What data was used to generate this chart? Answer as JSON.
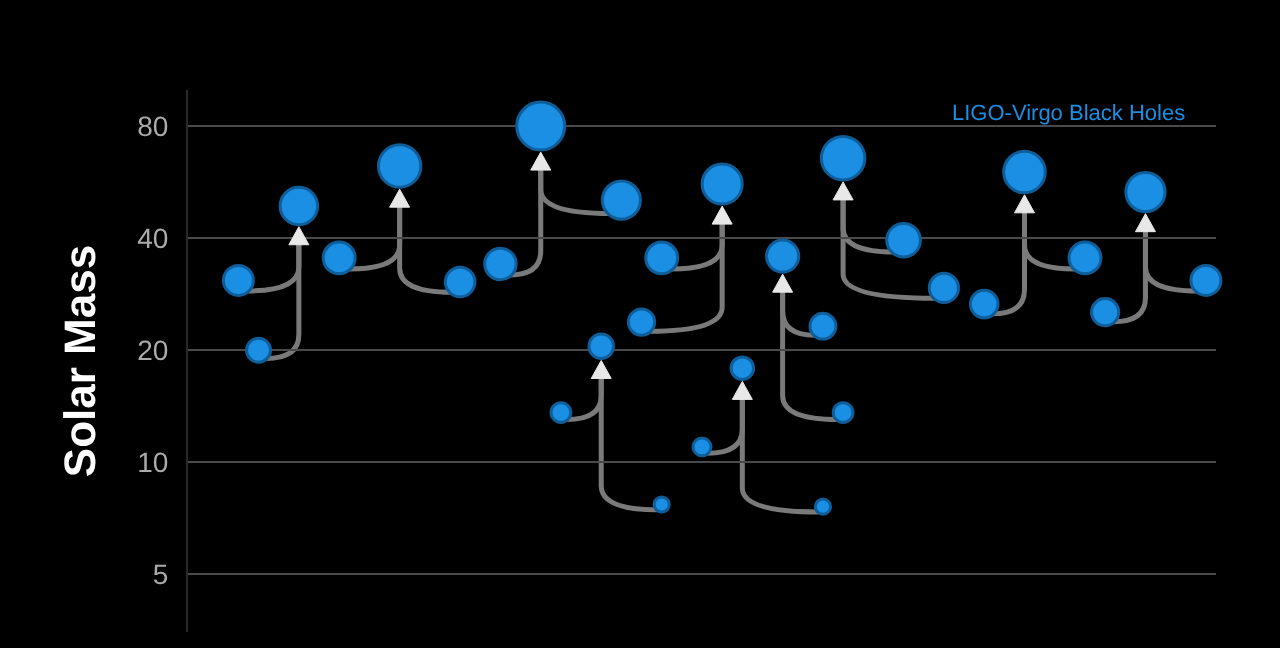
{
  "chart_data": {
    "type": "bubble",
    "ylabel": "Solar Mass",
    "annotations": [
      "LIGO-Virgo Black Holes"
    ],
    "log": true,
    "grid": "y",
    "marker": "circle",
    "tick_labels": "y",
    "ylim": [
      3.5,
      100
    ],
    "yticks": [
      5,
      10,
      20,
      40,
      80
    ],
    "categories": [
      null,
      null,
      null,
      null,
      null,
      null,
      null,
      null,
      null,
      null,
      null,
      null,
      null,
      null,
      null,
      null,
      null,
      null,
      null,
      null,
      null,
      null,
      null,
      null,
      null,
      null,
      null,
      null,
      null,
      null,
      null,
      null,
      null,
      null,
      null,
      null,
      null,
      null,
      null,
      null,
      null,
      null,
      null,
      null,
      null,
      null,
      null,
      null,
      null,
      null,
      null
    ],
    "series": [
      {
        "color": "#1a8fe3",
        "values": [
          null,
          null,
          30.8,
          20.0,
          null,
          48.8,
          null,
          null,
          null,
          null,
          null,
          null,
          null,
          null,
          null,
          null,
          null,
          null,
          null,
          null,
          null,
          null,
          null,
          null,
          null,
          null,
          null,
          null,
          null,
          null,
          null,
          null,
          null,
          null,
          null,
          null,
          null,
          null,
          null,
          null,
          null,
          null,
          null,
          null,
          null,
          null,
          null,
          null,
          null,
          null,
          null
        ],
        "sizes": [
          null,
          null,
          0.39,
          0.25,
          null,
          0.61,
          null,
          null,
          null,
          null,
          null,
          null,
          null,
          null,
          null,
          null,
          null,
          null,
          null,
          null,
          null,
          null,
          null,
          null,
          null,
          null,
          null,
          null,
          null,
          null,
          null,
          null,
          null,
          null,
          null,
          null,
          null,
          null,
          null,
          null,
          null,
          null,
          null,
          null,
          null,
          null,
          null,
          null,
          null,
          null,
          null
        ]
      },
      {
        "color": "#1a8fe3",
        "values": [
          null,
          null,
          null,
          null,
          null,
          null,
          null,
          35.4,
          null,
          null,
          62.5,
          null,
          null,
          30.5,
          null,
          null,
          null,
          null,
          null,
          null,
          null,
          null,
          null,
          null,
          null,
          null,
          null,
          null,
          null,
          null,
          null,
          null,
          null,
          null,
          null,
          null,
          null,
          null,
          null,
          null,
          null,
          null,
          null,
          null,
          null,
          null,
          null,
          null,
          null,
          null,
          null
        ],
        "sizes": [
          null,
          null,
          null,
          null,
          null,
          null,
          null,
          0.44,
          null,
          null,
          0.78,
          null,
          null,
          0.38,
          null,
          null,
          null,
          null,
          null,
          null,
          null,
          null,
          null,
          null,
          null,
          null,
          null,
          null,
          null,
          null,
          null,
          null,
          null,
          null,
          null,
          null,
          null,
          null,
          null,
          null,
          null,
          null,
          null,
          null,
          null,
          null,
          null,
          null,
          null,
          null,
          null
        ]
      },
      {
        "color": "#1a8fe3",
        "values": [
          null,
          null,
          null,
          null,
          null,
          null,
          null,
          null,
          null,
          null,
          null,
          null,
          null,
          null,
          null,
          34.1,
          null,
          80.0,
          null,
          null,
          null,
          50.6,
          null,
          null,
          null,
          null,
          null,
          null,
          null,
          null,
          null,
          null,
          null,
          null,
          null,
          null,
          null,
          null,
          null,
          null,
          null,
          null,
          null,
          null,
          null,
          null,
          null,
          null,
          null,
          null,
          null
        ],
        "sizes": [
          null,
          null,
          null,
          null,
          null,
          null,
          null,
          null,
          null,
          null,
          null,
          null,
          null,
          null,
          null,
          0.43,
          null,
          1,
          null,
          null,
          null,
          0.63,
          null,
          null,
          null,
          null,
          null,
          null,
          null,
          null,
          null,
          null,
          null,
          null,
          null,
          null,
          null,
          null,
          null,
          null,
          null,
          null,
          null,
          null,
          null,
          null,
          null,
          null,
          null,
          null,
          null
        ]
      },
      {
        "color": "#1a8fe3",
        "values": [
          null,
          null,
          null,
          null,
          null,
          null,
          null,
          null,
          null,
          null,
          null,
          null,
          null,
          null,
          null,
          null,
          null,
          null,
          13.6,
          null,
          20.5,
          null,
          null,
          7.7,
          null,
          null,
          null,
          null,
          null,
          null,
          null,
          null,
          null,
          null,
          null,
          null,
          null,
          null,
          null,
          null,
          null,
          null,
          null,
          null,
          null,
          null,
          null,
          null,
          null,
          null,
          null
        ],
        "sizes": [
          null,
          null,
          null,
          null,
          null,
          null,
          null,
          null,
          null,
          null,
          null,
          null,
          null,
          null,
          null,
          null,
          null,
          null,
          0.17,
          null,
          0.26,
          null,
          null,
          0.1,
          null,
          null,
          null,
          null,
          null,
          null,
          null,
          null,
          null,
          null,
          null,
          null,
          null,
          null,
          null,
          null,
          null,
          null,
          null,
          null,
          null,
          null,
          null,
          null,
          null,
          null,
          null
        ]
      },
      {
        "color": "#1a8fe3",
        "values": [
          null,
          null,
          null,
          null,
          null,
          null,
          null,
          null,
          null,
          null,
          null,
          null,
          null,
          null,
          null,
          null,
          null,
          null,
          null,
          null,
          null,
          null,
          23.8,
          35.4,
          null,
          null,
          55.9,
          null,
          null,
          null,
          null,
          null,
          null,
          null,
          null,
          null,
          null,
          null,
          null,
          null,
          null,
          null,
          null,
          null,
          null,
          null,
          null,
          null,
          null,
          null,
          null
        ],
        "sizes": [
          null,
          null,
          null,
          null,
          null,
          null,
          null,
          null,
          null,
          null,
          null,
          null,
          null,
          null,
          null,
          null,
          null,
          null,
          null,
          null,
          null,
          null,
          0.3,
          0.44,
          null,
          null,
          0.7,
          null,
          null,
          null,
          null,
          null,
          null,
          null,
          null,
          null,
          null,
          null,
          null,
          null,
          null,
          null,
          null,
          null,
          null,
          null,
          null,
          null,
          null,
          null,
          null
        ]
      },
      {
        "color": "#1a8fe3",
        "values": [
          null,
          null,
          null,
          null,
          null,
          null,
          null,
          null,
          null,
          null,
          null,
          null,
          null,
          null,
          null,
          null,
          null,
          null,
          null,
          null,
          null,
          null,
          null,
          null,
          null,
          11.0,
          null,
          17.9,
          null,
          null,
          null,
          7.6,
          null,
          null,
          null,
          null,
          null,
          null,
          null,
          null,
          null,
          null,
          null,
          null,
          null,
          null,
          null,
          null,
          null,
          null,
          null
        ],
        "sizes": [
          null,
          null,
          null,
          null,
          null,
          null,
          null,
          null,
          null,
          null,
          null,
          null,
          null,
          null,
          null,
          null,
          null,
          null,
          null,
          null,
          null,
          null,
          null,
          null,
          null,
          0.14,
          null,
          0.22,
          null,
          null,
          null,
          0.1,
          null,
          null,
          null,
          null,
          null,
          null,
          null,
          null,
          null,
          null,
          null,
          null,
          null,
          null,
          null,
          null,
          null,
          null,
          null
        ]
      },
      {
        "color": "#1a8fe3",
        "values": [
          null,
          null,
          null,
          null,
          null,
          null,
          null,
          null,
          null,
          null,
          null,
          null,
          null,
          null,
          null,
          null,
          null,
          null,
          null,
          null,
          null,
          null,
          null,
          null,
          null,
          null,
          null,
          null,
          null,
          35.8,
          null,
          23.2,
          13.6,
          null,
          null,
          null,
          null,
          null,
          null,
          null,
          null,
          null,
          null,
          null,
          null,
          null,
          null,
          null,
          null,
          null,
          null
        ],
        "sizes": [
          null,
          null,
          null,
          null,
          null,
          null,
          null,
          null,
          null,
          null,
          null,
          null,
          null,
          null,
          null,
          null,
          null,
          null,
          null,
          null,
          null,
          null,
          null,
          null,
          null,
          null,
          null,
          null,
          null,
          0.45,
          null,
          0.29,
          0.17,
          null,
          null,
          null,
          null,
          null,
          null,
          null,
          null,
          null,
          null,
          null,
          null,
          null,
          null,
          null,
          null,
          null,
          null
        ]
      },
      {
        "color": "#1a8fe3",
        "values": [
          null,
          null,
          null,
          null,
          null,
          null,
          null,
          null,
          null,
          null,
          null,
          null,
          null,
          null,
          null,
          null,
          null,
          null,
          null,
          null,
          null,
          null,
          null,
          null,
          null,
          null,
          null,
          null,
          null,
          null,
          null,
          null,
          65.6,
          null,
          null,
          39.5,
          null,
          29.4,
          null,
          null,
          null,
          null,
          null,
          null,
          null,
          null,
          null,
          null,
          null,
          null,
          null
        ],
        "sizes": [
          null,
          null,
          null,
          null,
          null,
          null,
          null,
          null,
          null,
          null,
          null,
          null,
          null,
          null,
          null,
          null,
          null,
          null,
          null,
          null,
          null,
          null,
          null,
          null,
          null,
          null,
          null,
          null,
          null,
          null,
          null,
          null,
          0.82,
          null,
          null,
          0.49,
          null,
          0.37,
          null,
          null,
          null,
          null,
          null,
          null,
          null,
          null,
          null,
          null,
          null,
          null,
          null
        ]
      },
      {
        "color": "#1a8fe3",
        "values": [
          null,
          null,
          null,
          null,
          null,
          null,
          null,
          null,
          null,
          null,
          null,
          null,
          null,
          null,
          null,
          null,
          null,
          null,
          null,
          null,
          null,
          null,
          null,
          null,
          null,
          null,
          null,
          null,
          null,
          null,
          null,
          null,
          null,
          null,
          null,
          null,
          null,
          null,
          null,
          26.6,
          null,
          60.2,
          null,
          null,
          35.4,
          null,
          null,
          null,
          null,
          null,
          null
        ],
        "sizes": [
          null,
          null,
          null,
          null,
          null,
          null,
          null,
          null,
          null,
          null,
          null,
          null,
          null,
          null,
          null,
          null,
          null,
          null,
          null,
          null,
          null,
          null,
          null,
          null,
          null,
          null,
          null,
          null,
          null,
          null,
          null,
          null,
          null,
          null,
          null,
          null,
          null,
          null,
          null,
          0.33,
          null,
          0.75,
          null,
          null,
          0.44,
          null,
          null,
          null,
          null,
          null,
          null
        ]
      },
      {
        "color": "#1a8fe3",
        "values": [
          null,
          null,
          null,
          null,
          null,
          null,
          null,
          null,
          null,
          null,
          null,
          null,
          null,
          null,
          null,
          null,
          null,
          null,
          null,
          null,
          null,
          null,
          null,
          null,
          null,
          null,
          null,
          null,
          null,
          null,
          null,
          null,
          null,
          null,
          null,
          null,
          null,
          null,
          null,
          null,
          null,
          null,
          null,
          null,
          null,
          25.3,
          null,
          53.2,
          null,
          null,
          30.8
        ],
        "sizes": [
          null,
          null,
          null,
          null,
          null,
          null,
          null,
          null,
          null,
          null,
          null,
          null,
          null,
          null,
          null,
          null,
          null,
          null,
          null,
          null,
          null,
          null,
          null,
          null,
          null,
          null,
          null,
          null,
          null,
          null,
          null,
          null,
          null,
          null,
          null,
          null,
          null,
          null,
          null,
          null,
          null,
          null,
          null,
          null,
          null,
          0.32,
          null,
          0.67,
          null,
          null,
          0.39
        ]
      }
    ]
  }
}
